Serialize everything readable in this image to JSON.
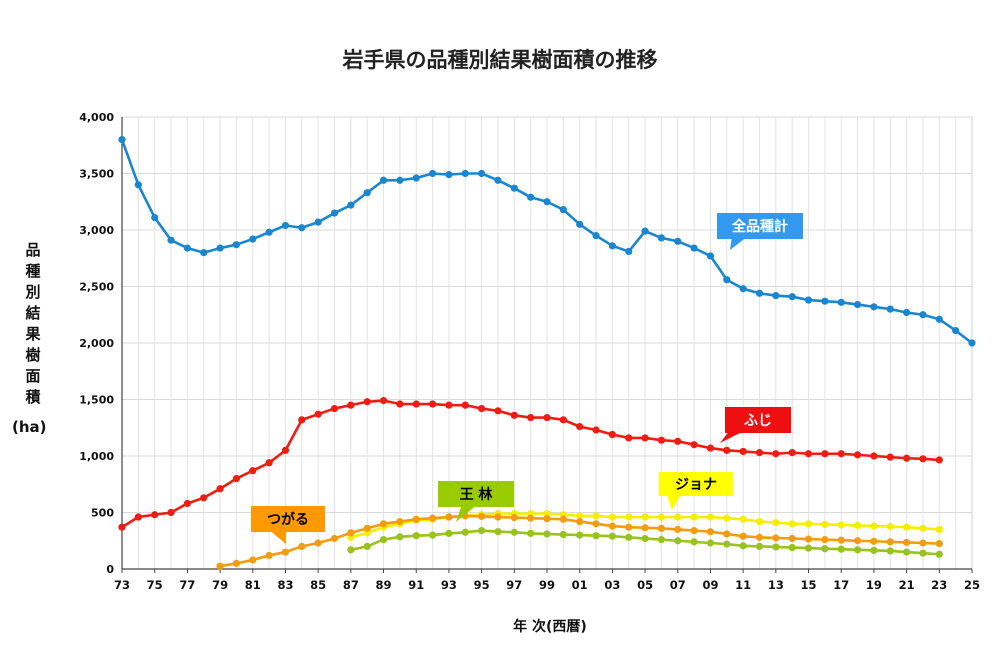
{
  "chart_data": {
    "type": "line",
    "title": "岩手県の品種別結果樹面積の推移",
    "ylabel": "品種別結果樹面積",
    "yunit": "(ha)",
    "xlabel": "年 次(西暦)",
    "ylim": [
      0,
      4000
    ],
    "yticks": [
      0,
      500,
      1000,
      1500,
      2000,
      2500,
      3000,
      3500,
      4000
    ],
    "ytick_labels": [
      "0",
      "500",
      "1,000",
      "1,500",
      "2,000",
      "2,500",
      "3,000",
      "3,500",
      "4,000"
    ],
    "xlim": [
      1973,
      2025
    ],
    "xticks": [
      1973,
      1975,
      1977,
      1979,
      1981,
      1983,
      1985,
      1987,
      1989,
      1991,
      1993,
      1995,
      1997,
      1999,
      2001,
      2003,
      2005,
      2007,
      2009,
      2011,
      2013,
      2015,
      2017,
      2019,
      2021,
      2023,
      2025
    ],
    "xtick_labels": [
      "73",
      "75",
      "77",
      "79",
      "81",
      "83",
      "85",
      "87",
      "89",
      "91",
      "93",
      "95",
      "97",
      "99",
      "01",
      "03",
      "05",
      "07",
      "09",
      "11",
      "13",
      "15",
      "17",
      "19",
      "21",
      "23",
      "25"
    ],
    "grid": true,
    "series": [
      {
        "name": "全品種計",
        "color": "#1a86cf",
        "callout_color": "#3399f0",
        "x": [
          1973,
          1974,
          1975,
          1976,
          1977,
          1978,
          1979,
          1980,
          1981,
          1982,
          1983,
          1984,
          1985,
          1986,
          1987,
          1988,
          1989,
          1990,
          1991,
          1992,
          1993,
          1994,
          1995,
          1996,
          1997,
          1998,
          1999,
          2000,
          2001,
          2002,
          2003,
          2004,
          2005,
          2006,
          2007,
          2008,
          2009,
          2010,
          2011,
          2012,
          2013,
          2014,
          2015,
          2016,
          2017,
          2018,
          2019,
          2020,
          2021,
          2022,
          2023,
          2024,
          2025
        ],
        "y": [
          3800,
          3400,
          3110,
          2910,
          2840,
          2800,
          2840,
          2870,
          2920,
          2980,
          3040,
          3020,
          3070,
          3150,
          3220,
          3330,
          3440,
          3440,
          3460,
          3500,
          3490,
          3500,
          3500,
          3440,
          3370,
          3290,
          3250,
          3180,
          3050,
          2950,
          2860,
          2810,
          2990,
          2930,
          2900,
          2840,
          2770,
          2560,
          2480,
          2440,
          2420,
          2410,
          2380,
          2370,
          2360,
          2340,
          2320,
          2300,
          2270,
          2250,
          2210,
          2110,
          2000
        ]
      },
      {
        "name": "ふじ",
        "color": "#ee1c12",
        "callout_color": "#ee1010",
        "x": [
          1973,
          1974,
          1975,
          1976,
          1977,
          1978,
          1979,
          1980,
          1981,
          1982,
          1983,
          1984,
          1985,
          1986,
          1987,
          1988,
          1989,
          1990,
          1991,
          1992,
          1993,
          1994,
          1995,
          1996,
          1997,
          1998,
          1999,
          2000,
          2001,
          2002,
          2003,
          2004,
          2005,
          2006,
          2007,
          2008,
          2009,
          2010,
          2011,
          2012,
          2013,
          2014,
          2015,
          2016,
          2017,
          2018,
          2019,
          2020,
          2021,
          2022,
          2023
        ],
        "y": [
          370,
          460,
          480,
          500,
          580,
          630,
          710,
          800,
          870,
          940,
          1050,
          1320,
          1370,
          1420,
          1450,
          1480,
          1490,
          1460,
          1460,
          1460,
          1450,
          1450,
          1420,
          1400,
          1360,
          1340,
          1340,
          1320,
          1260,
          1230,
          1190,
          1160,
          1160,
          1140,
          1130,
          1100,
          1070,
          1050,
          1040,
          1030,
          1020,
          1030,
          1020,
          1020,
          1020,
          1010,
          1000,
          990,
          980,
          975,
          965
        ]
      },
      {
        "name": "ジョナ",
        "color": "#f5ee00",
        "callout_color": "#ffff00",
        "x": [
          1987,
          1988,
          1989,
          1990,
          1991,
          1992,
          1993,
          1994,
          1995,
          1996,
          1997,
          1998,
          1999,
          2000,
          2001,
          2002,
          2003,
          2004,
          2005,
          2006,
          2007,
          2008,
          2009,
          2010,
          2011,
          2012,
          2013,
          2014,
          2015,
          2016,
          2017,
          2018,
          2019,
          2020,
          2021,
          2022,
          2023
        ],
        "y": [
          280,
          320,
          370,
          400,
          430,
          440,
          460,
          470,
          480,
          490,
          490,
          490,
          490,
          480,
          470,
          470,
          460,
          460,
          460,
          460,
          460,
          460,
          460,
          450,
          440,
          420,
          410,
          400,
          400,
          395,
          390,
          385,
          380,
          375,
          370,
          360,
          350
        ]
      },
      {
        "name": "つがる",
        "color": "#f39c12",
        "callout_color": "#ff9900",
        "x": [
          1979,
          1980,
          1981,
          1982,
          1983,
          1984,
          1985,
          1986,
          1987,
          1988,
          1989,
          1990,
          1991,
          1992,
          1993,
          1994,
          1995,
          1996,
          1997,
          1998,
          1999,
          2000,
          2001,
          2002,
          2003,
          2004,
          2005,
          2006,
          2007,
          2008,
          2009,
          2010,
          2011,
          2012,
          2013,
          2014,
          2015,
          2016,
          2017,
          2018,
          2019,
          2020,
          2021,
          2022,
          2023
        ],
        "y": [
          25,
          50,
          80,
          120,
          150,
          200,
          230,
          270,
          320,
          360,
          400,
          420,
          440,
          450,
          460,
          470,
          465,
          460,
          455,
          450,
          445,
          440,
          420,
          400,
          380,
          370,
          365,
          360,
          350,
          340,
          330,
          310,
          290,
          280,
          275,
          270,
          265,
          260,
          255,
          250,
          245,
          240,
          235,
          230,
          225
        ]
      },
      {
        "name": "王 林",
        "color": "#98c21e",
        "callout_color": "#99cc00",
        "x": [
          1987,
          1988,
          1989,
          1990,
          1991,
          1992,
          1993,
          1994,
          1995,
          1996,
          1997,
          1998,
          1999,
          2000,
          2001,
          2002,
          2003,
          2004,
          2005,
          2006,
          2007,
          2008,
          2009,
          2010,
          2011,
          2012,
          2013,
          2014,
          2015,
          2016,
          2017,
          2018,
          2019,
          2020,
          2021,
          2022,
          2023
        ],
        "y": [
          170,
          200,
          260,
          285,
          295,
          300,
          315,
          325,
          340,
          330,
          325,
          315,
          310,
          305,
          300,
          295,
          290,
          280,
          270,
          260,
          250,
          240,
          230,
          220,
          205,
          200,
          195,
          190,
          185,
          180,
          175,
          170,
          165,
          160,
          150,
          140,
          130
        ]
      }
    ]
  }
}
